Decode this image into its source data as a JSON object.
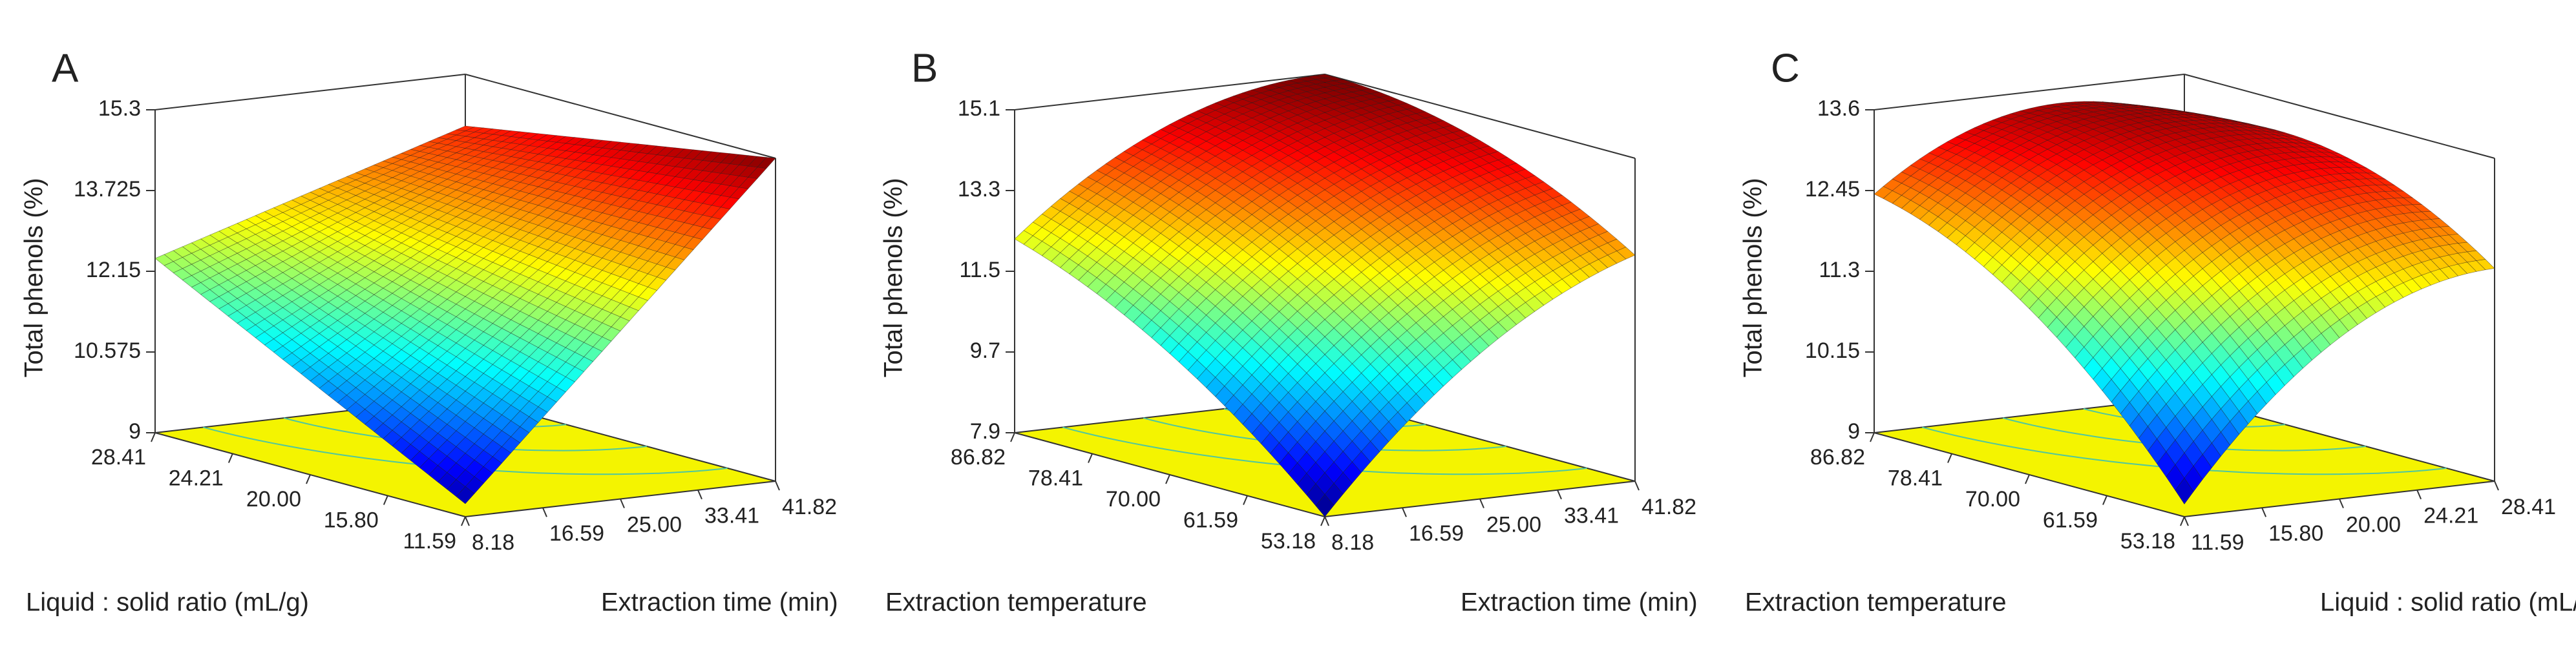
{
  "chart_data": [
    {
      "type": "surface3d",
      "panel_label": "A",
      "floor_color": "#f4f400",
      "xlabel": "Liquid : solid ratio (mL/g)",
      "ylabel": "Extraction time (min)",
      "zlabel": "Total phenols (%)",
      "xlim": [
        11.59,
        28.41
      ],
      "xticks": [
        11.59,
        {
          "value": 15.8,
          "label": "15.80"
        },
        {
          "value": 20,
          "label": "20.00"
        },
        24.21,
        28.41
      ],
      "ylim": [
        8.18,
        41.82
      ],
      "yticks": [
        8.18,
        16.59,
        {
          "value": 25,
          "label": "25.00"
        },
        33.41,
        41.82
      ],
      "zlim": [
        9,
        15.3
      ],
      "zticks": [
        9,
        10.575,
        12.15,
        13.725,
        15.3
      ]
    },
    {
      "type": "surface3d",
      "panel_label": "B",
      "floor_color": "#f4f400",
      "xlabel": "Extraction temperature",
      "ylabel": "Extraction time (min)",
      "zlabel": "Total phenols (%)",
      "xlim": [
        53.18,
        86.82
      ],
      "xticks": [
        53.18,
        61.59,
        {
          "value": 70,
          "label": "70.00"
        },
        78.41,
        86.82
      ],
      "ylim": [
        8.18,
        41.82
      ],
      "yticks": [
        8.18,
        16.59,
        {
          "value": 25,
          "label": "25.00"
        },
        33.41,
        41.82
      ],
      "zlim": [
        7.9,
        15.1
      ],
      "zticks": [
        7.9,
        9.7,
        11.5,
        13.3,
        15.1
      ]
    },
    {
      "type": "surface3d",
      "panel_label": "C",
      "floor_color": "#f4f400",
      "xlabel": "Extraction temperature",
      "ylabel": "Liquid : solid ratio (mL/g)",
      "zlabel": "Total phenols (%)",
      "xlim": [
        53.18,
        86.82
      ],
      "xticks": [
        53.18,
        61.59,
        {
          "value": 70,
          "label": "70.00"
        },
        78.41,
        86.82
      ],
      "ylim": [
        11.59,
        28.41
      ],
      "yticks": [
        11.59,
        {
          "value": 15.8,
          "label": "15.80"
        },
        {
          "value": 20,
          "label": "20.00"
        },
        24.21,
        28.41
      ],
      "zlim": [
        9,
        13.6
      ],
      "zticks": [
        9,
        10.15,
        11.3,
        12.45,
        13.6
      ]
    }
  ]
}
